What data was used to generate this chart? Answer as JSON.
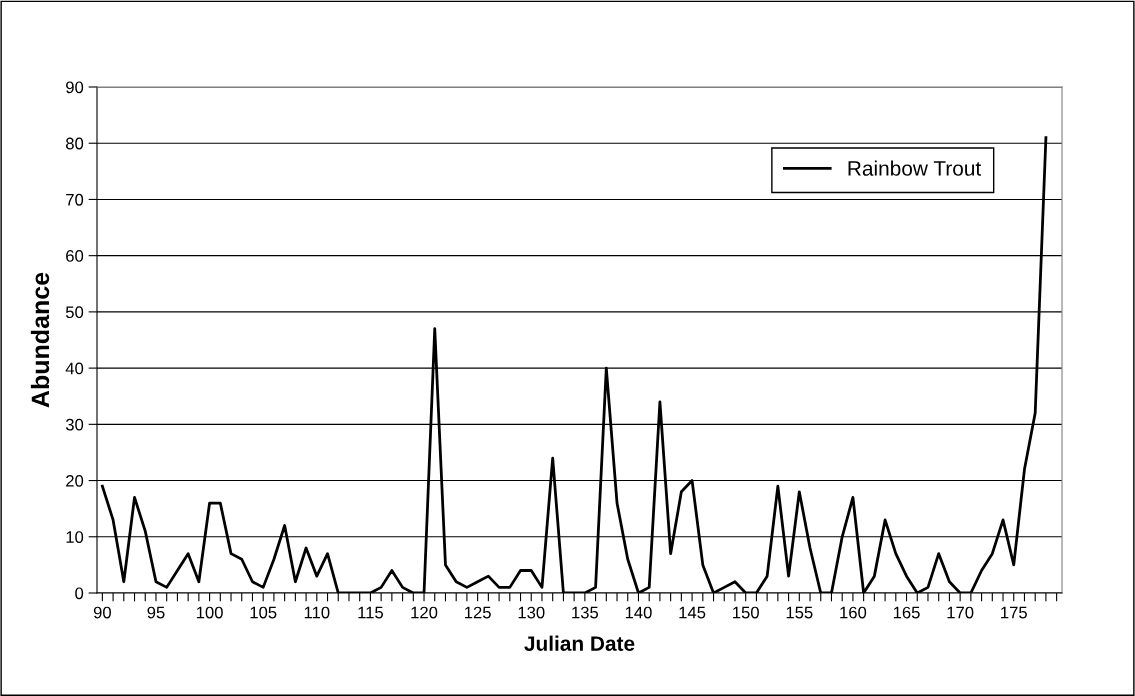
{
  "chart_data": {
    "type": "line",
    "xlabel": "Julian Date",
    "ylabel": "Abundance",
    "x": [
      90,
      91,
      92,
      93,
      94,
      95,
      96,
      97,
      98,
      99,
      100,
      101,
      102,
      103,
      104,
      105,
      106,
      107,
      108,
      109,
      110,
      111,
      112,
      113,
      114,
      115,
      116,
      117,
      118,
      119,
      120,
      121,
      122,
      123,
      124,
      125,
      126,
      127,
      128,
      129,
      130,
      131,
      132,
      133,
      134,
      135,
      136,
      137,
      138,
      139,
      140,
      141,
      142,
      143,
      144,
      145,
      146,
      147,
      148,
      149,
      150,
      151,
      152,
      153,
      154,
      155,
      156,
      157,
      158,
      159,
      160,
      161,
      162,
      163,
      164,
      165,
      166,
      167,
      168,
      169,
      170,
      171,
      172,
      173,
      174,
      175,
      176,
      177,
      178
    ],
    "series": [
      {
        "name": "Rainbow Trout",
        "color": "#000000",
        "values": [
          19,
          13,
          2,
          17,
          11,
          2,
          1,
          4,
          7,
          2,
          16,
          16,
          7,
          6,
          2,
          1,
          6,
          12,
          2,
          8,
          3,
          7,
          0,
          0,
          0,
          0,
          1,
          4,
          1,
          0,
          0,
          47,
          5,
          2,
          1,
          2,
          3,
          1,
          1,
          4,
          4,
          1,
          24,
          0,
          0,
          0,
          1,
          40,
          16,
          6,
          0,
          1,
          34,
          7,
          18,
          20,
          5,
          0,
          1,
          2,
          0,
          0,
          3,
          19,
          3,
          18,
          8,
          0,
          0,
          10,
          17,
          0,
          3,
          13,
          7,
          3,
          0,
          1,
          7,
          2,
          0,
          0,
          4,
          7,
          13,
          5,
          22,
          32,
          81
        ]
      }
    ],
    "xlim": [
      89.5,
      179.5
    ],
    "xticks": [
      90,
      {
        "value": 91,
        "label": null
      },
      {
        "value": 92,
        "label": null
      },
      {
        "value": 93,
        "label": null
      },
      {
        "value": 94,
        "label": null
      },
      95,
      {
        "value": 96,
        "label": null
      },
      {
        "value": 97,
        "label": null
      },
      {
        "value": 98,
        "label": null
      },
      {
        "value": 99,
        "label": null
      },
      100,
      {
        "value": 101,
        "label": null
      },
      {
        "value": 102,
        "label": null
      },
      {
        "value": 103,
        "label": null
      },
      {
        "value": 104,
        "label": null
      },
      105,
      {
        "value": 106,
        "label": null
      },
      {
        "value": 107,
        "label": null
      },
      {
        "value": 108,
        "label": null
      },
      {
        "value": 109,
        "label": null
      },
      110,
      {
        "value": 111,
        "label": null
      },
      {
        "value": 112,
        "label": null
      },
      {
        "value": 113,
        "label": null
      },
      {
        "value": 114,
        "label": null
      },
      115,
      {
        "value": 116,
        "label": null
      },
      {
        "value": 117,
        "label": null
      },
      {
        "value": 118,
        "label": null
      },
      {
        "value": 119,
        "label": null
      },
      120,
      {
        "value": 121,
        "label": null
      },
      {
        "value": 122,
        "label": null
      },
      {
        "value": 123,
        "label": null
      },
      {
        "value": 124,
        "label": null
      },
      125,
      {
        "value": 126,
        "label": null
      },
      {
        "value": 127,
        "label": null
      },
      {
        "value": 128,
        "label": null
      },
      {
        "value": 129,
        "label": null
      },
      130,
      {
        "value": 131,
        "label": null
      },
      {
        "value": 132,
        "label": null
      },
      {
        "value": 133,
        "label": null
      },
      {
        "value": 134,
        "label": null
      },
      135,
      {
        "value": 136,
        "label": null
      },
      {
        "value": 137,
        "label": null
      },
      {
        "value": 138,
        "label": null
      },
      {
        "value": 139,
        "label": null
      },
      140,
      {
        "value": 141,
        "label": null
      },
      {
        "value": 142,
        "label": null
      },
      {
        "value": 143,
        "label": null
      },
      {
        "value": 144,
        "label": null
      },
      145,
      {
        "value": 146,
        "label": null
      },
      {
        "value": 147,
        "label": null
      },
      {
        "value": 148,
        "label": null
      },
      {
        "value": 149,
        "label": null
      },
      150,
      {
        "value": 151,
        "label": null
      },
      {
        "value": 152,
        "label": null
      },
      {
        "value": 153,
        "label": null
      },
      {
        "value": 154,
        "label": null
      },
      155,
      {
        "value": 156,
        "label": null
      },
      {
        "value": 157,
        "label": null
      },
      {
        "value": 158,
        "label": null
      },
      {
        "value": 159,
        "label": null
      },
      160,
      {
        "value": 161,
        "label": null
      },
      {
        "value": 162,
        "label": null
      },
      {
        "value": 163,
        "label": null
      },
      {
        "value": 164,
        "label": null
      },
      165,
      {
        "value": 166,
        "label": null
      },
      {
        "value": 167,
        "label": null
      },
      {
        "value": 168,
        "label": null
      },
      {
        "value": 169,
        "label": null
      },
      170,
      {
        "value": 171,
        "label": null
      },
      {
        "value": 172,
        "label": null
      },
      {
        "value": 173,
        "label": null
      },
      {
        "value": 174,
        "label": null
      },
      175,
      {
        "value": 176,
        "label": null
      },
      {
        "value": 177,
        "label": null
      },
      {
        "value": 178,
        "label": null
      },
      {
        "value": 179,
        "label": null
      }
    ],
    "ylim": [
      0,
      90
    ],
    "yticks": [
      0,
      10,
      20,
      30,
      40,
      50,
      60,
      70,
      80,
      90
    ],
    "grid": "y",
    "legend": "top right",
    "marker": "none",
    "line_style": "solid"
  }
}
